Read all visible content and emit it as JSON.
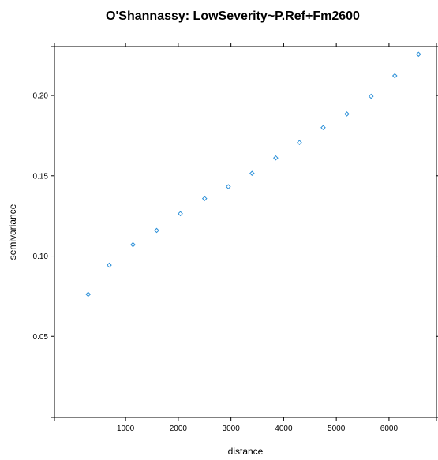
{
  "chart_data": {
    "type": "scatter",
    "title": "O'Shannassy: LowSeverity~P.Ref+Fm2600",
    "xlabel": "distance",
    "ylabel": "semivariance",
    "xlim": [
      -350,
      6900
    ],
    "ylim": [
      -0.0005,
      0.2305
    ],
    "xticks": [
      1000,
      2000,
      3000,
      4000,
      5000,
      6000
    ],
    "xtick_labels": [
      "1000",
      "2000",
      "3000",
      "4000",
      "5000",
      "6000"
    ],
    "yticks": [
      0.05,
      0.1,
      0.15,
      0.2
    ],
    "ytick_labels": [
      "0.05",
      "0.10",
      "0.15",
      "0.20"
    ],
    "grid": false,
    "marker": "diamond",
    "point_color": "#2a8fd8",
    "series": [
      {
        "x": [
          290,
          690,
          1140,
          1590,
          2040,
          2500,
          2950,
          3400,
          3850,
          4300,
          4750,
          5200,
          5660,
          6110,
          6560
        ],
        "y": [
          0.0762,
          0.0943,
          0.1071,
          0.116,
          0.1264,
          0.1358,
          0.1432,
          0.1515,
          0.1611,
          0.1707,
          0.18,
          0.1885,
          0.1995,
          0.2123,
          0.2257
        ]
      }
    ]
  }
}
